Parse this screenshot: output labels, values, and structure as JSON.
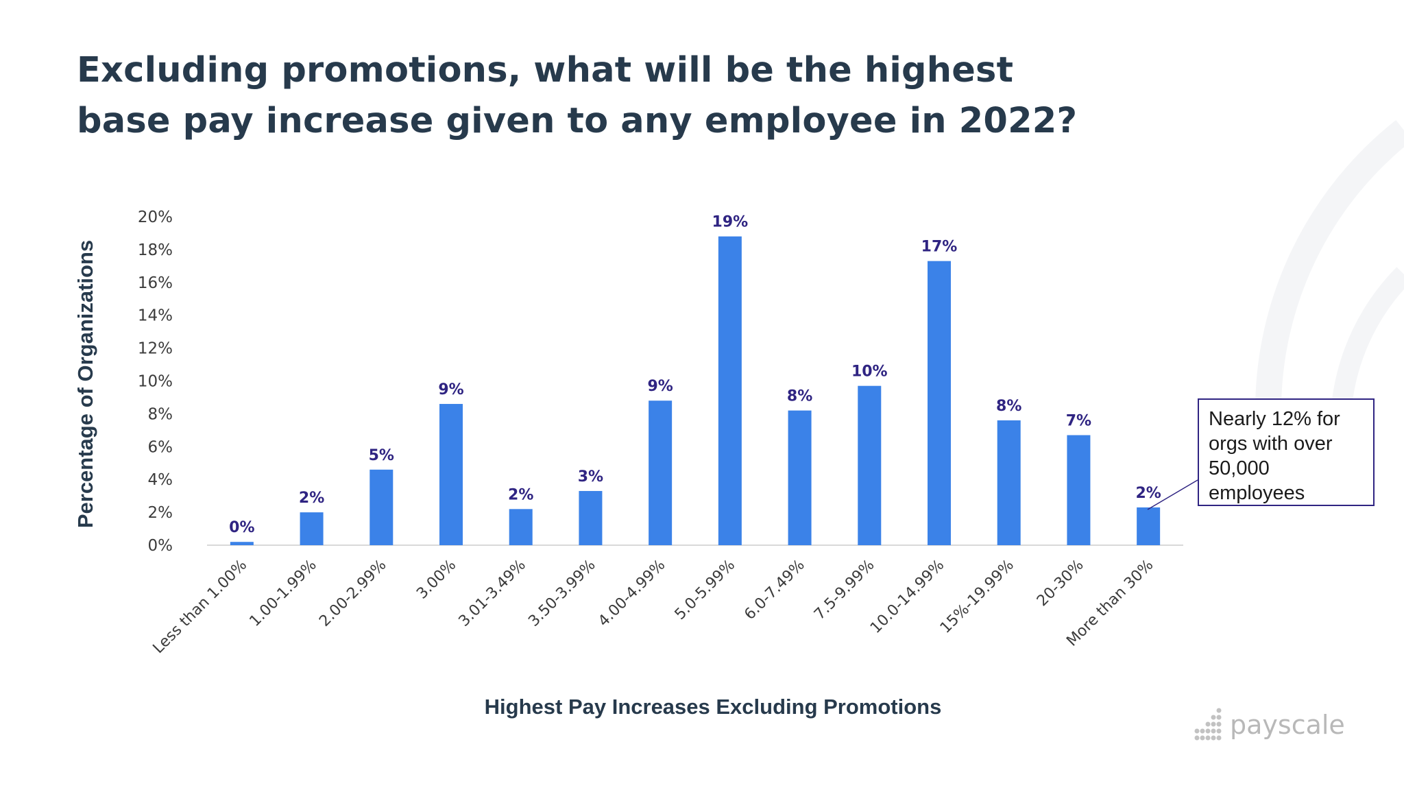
{
  "slide": {
    "title": "Excluding promotions, what will be the highest base pay increase given to any employee in 2022?",
    "callout_text": "Nearly 12% for orgs with over 50,000 employees",
    "logo_text": "payscale"
  },
  "colors": {
    "bar": "#3b82e8",
    "data_label": "#2f2482",
    "title": "#273a4c",
    "callout_border": "#2f2482",
    "logo": "#b8b8b8"
  },
  "icons": {
    "logo": "payscale-dots-icon"
  },
  "chart_data": {
    "type": "bar",
    "title": "",
    "xlabel": "Highest Pay Increases Excluding Promotions",
    "ylabel": "Percentage of Organizations",
    "categories": [
      "Less than 1.00%",
      "1.00-1.99%",
      "2.00-2.99%",
      "3.00%",
      "3.01-3.49%",
      "3.50-3.99%",
      "4.00-4.99%",
      "5.0-5.99%",
      "6.0-7.49%",
      "7.5-9.99%",
      "10.0-14.99%",
      "15%-19.99%",
      "20-30%",
      "More than 30%"
    ],
    "values": [
      0.2,
      2.0,
      4.6,
      8.6,
      2.2,
      3.3,
      8.8,
      18.8,
      8.2,
      9.7,
      17.3,
      7.6,
      6.7,
      2.3
    ],
    "data_labels": [
      "0%",
      "2%",
      "5%",
      "9%",
      "2%",
      "3%",
      "9%",
      "19%",
      "8%",
      "10%",
      "17%",
      "8%",
      "7%",
      "2%"
    ],
    "ylim": [
      0,
      20
    ],
    "yticks": [
      0,
      2,
      4,
      6,
      8,
      10,
      12,
      14,
      16,
      18,
      20
    ],
    "ytick_labels": [
      "0%",
      "2%",
      "4%",
      "6%",
      "8%",
      "10%",
      "12%",
      "14%",
      "16%",
      "18%",
      "20%"
    ],
    "grid": false,
    "legend": "none"
  }
}
